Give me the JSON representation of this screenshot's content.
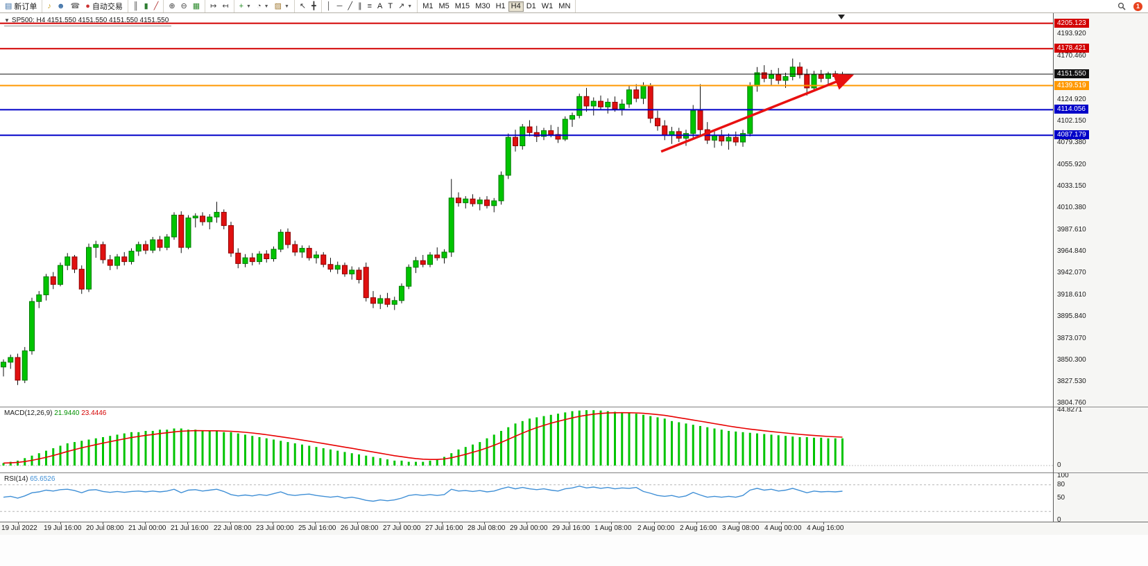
{
  "chart": {
    "collapse_arrow": "▼",
    "symbol_period": "SP500: H4",
    "ohlc": "4151.550 4151.550 4151.550 4151.550"
  },
  "toolbar": {
    "groups": [
      {
        "items": [
          {
            "icon": "new-order-icon",
            "label": "新订单",
            "name": "new-order-button"
          }
        ]
      },
      {
        "items": [
          {
            "icon": "sound-icon",
            "name": "sound-button"
          },
          {
            "icon": "community-icon",
            "name": "community-button"
          },
          {
            "icon": "support-icon",
            "name": "support-button"
          },
          {
            "icon": "autotrade-icon",
            "label": "自动交易",
            "name": "autotrading-button"
          }
        ]
      },
      {
        "items": [
          {
            "icon": "bar-chart-icon",
            "name": "bar-chart-button"
          },
          {
            "icon": "candlestick-icon",
            "name": "candlestick-button"
          },
          {
            "icon": "line-chart-icon",
            "name": "line-chart-button"
          }
        ]
      },
      {
        "items": [
          {
            "icon": "zoom-in-icon",
            "name": "zoom-in-button"
          },
          {
            "icon": "zoom-out-icon",
            "name": "zoom-out-button"
          },
          {
            "icon": "tile-windows-icon",
            "name": "tile-windows-button"
          }
        ]
      },
      {
        "items": [
          {
            "icon": "auto-scroll-icon",
            "name": "auto-scroll-button"
          },
          {
            "icon": "chart-shift-icon",
            "name": "chart-shift-button"
          }
        ]
      },
      {
        "items": [
          {
            "icon": "indicators-icon",
            "caret": true,
            "name": "indicators-button"
          },
          {
            "icon": "period-icon",
            "caret": true,
            "name": "periods-button"
          },
          {
            "icon": "template-icon",
            "caret": true,
            "name": "templates-button"
          }
        ]
      },
      {
        "items": [
          {
            "icon": "cursor-icon",
            "name": "cursor-button"
          },
          {
            "icon": "crosshair-icon",
            "name": "crosshair-button"
          }
        ]
      },
      {
        "items": [
          {
            "icon": "vline-icon",
            "name": "vline-button"
          },
          {
            "icon": "hline-icon",
            "name": "hline-button"
          },
          {
            "icon": "trendline-icon",
            "name": "trendline-button"
          },
          {
            "icon": "channel-icon",
            "name": "channel-button"
          },
          {
            "icon": "fibo-icon",
            "name": "fibo-button"
          },
          {
            "icon": "text-icon",
            "label": "A",
            "name": "text-button"
          },
          {
            "icon": "label-icon",
            "label": "T",
            "name": "label-button"
          },
          {
            "icon": "arrows-icon",
            "caret": true,
            "name": "arrows-button"
          }
        ]
      },
      {
        "items": [
          {
            "label": "M1",
            "name": "tf-m1"
          },
          {
            "label": "M5",
            "name": "tf-m5"
          },
          {
            "label": "M15",
            "name": "tf-m15"
          },
          {
            "label": "M30",
            "name": "tf-m30"
          },
          {
            "label": "H1",
            "name": "tf-h1"
          },
          {
            "label": "H4",
            "name": "tf-h4",
            "active": true
          },
          {
            "label": "D1",
            "name": "tf-d1"
          },
          {
            "label": "W1",
            "name": "tf-w1"
          },
          {
            "label": "MN",
            "name": "tf-mn"
          }
        ]
      }
    ],
    "right": [
      {
        "icon": "search-icon",
        "name": "search-button"
      },
      {
        "icon": "notification-badge",
        "label": "1",
        "name": "notification-badge"
      }
    ]
  },
  "chart_data": [
    {
      "type": "candlestick",
      "symbol": "SP500",
      "period": "H4",
      "ylim": [
        3800,
        4212
      ],
      "y_ticks": [
        "4193.920",
        "4170.460",
        "4124.920",
        "4102.150",
        "4079.380",
        "4055.920",
        "4033.150",
        "4010.380",
        "3987.610",
        "3964.840",
        "3942.070",
        "3918.610",
        "3895.840",
        "3873.070",
        "3850.300",
        "3827.530",
        "3804.760"
      ],
      "x_labels": [
        "19 Jul 2022",
        "19 Jul 16:00",
        "20 Jul 08:00",
        "21 Jul 00:00",
        "21 Jul 16:00",
        "22 Jul 08:00",
        "23 Jul 00:00",
        "25 Jul 16:00",
        "26 Jul 08:00",
        "27 Jul 00:00",
        "27 Jul 16:00",
        "28 Jul 08:00",
        "29 Jul 00:00",
        "29 Jul 16:00",
        "1 Aug 08:00",
        "2 Aug 00:00",
        "2 Aug 16:00",
        "3 Aug 08:00",
        "4 Aug 00:00",
        "4 Aug 16:00"
      ],
      "levels": [
        {
          "price": 4205.123,
          "label": "4205.123",
          "color": "#d20000",
          "width": 2
        },
        {
          "price": 4178.421,
          "label": "4178.421",
          "color": "#d20000",
          "width": 2
        },
        {
          "price": 4139.519,
          "label": "4139.519",
          "color": "#ff9800",
          "width": 2
        },
        {
          "price": 4114.056,
          "label": "4114.056",
          "color": "#0000c8",
          "width": 2
        },
        {
          "price": 4087.179,
          "label": "4087.179",
          "color": "#0000c8",
          "width": 2
        }
      ],
      "current_price": {
        "price": 4151.55,
        "label": "4151.550",
        "color": "#101010"
      },
      "trend_arrow": {
        "from_bar": 92.5,
        "from_price": 4070,
        "to_bar": 119.3,
        "to_price": 4150,
        "color": "#e81010"
      },
      "candles": [
        [
          3843,
          3851,
          3833,
          3848
        ],
        [
          3848,
          3856,
          3841,
          3853
        ],
        [
          3853,
          3857,
          3824,
          3829
        ],
        [
          3829,
          3864,
          3826,
          3860
        ],
        [
          3860,
          3916,
          3856,
          3912
        ],
        [
          3912,
          3923,
          3905,
          3919
        ],
        [
          3919,
          3941,
          3913,
          3938
        ],
        [
          3938,
          3943,
          3925,
          3930
        ],
        [
          3930,
          3953,
          3928,
          3950
        ],
        [
          3950,
          3963,
          3945,
          3959
        ],
        [
          3959,
          3961,
          3942,
          3946
        ],
        [
          3946,
          3950,
          3920,
          3925
        ],
        [
          3925,
          3973,
          3922,
          3969
        ],
        [
          3969,
          3976,
          3958,
          3972
        ],
        [
          3972,
          3975,
          3952,
          3956
        ],
        [
          3956,
          3961,
          3945,
          3950
        ],
        [
          3950,
          3962,
          3946,
          3959
        ],
        [
          3959,
          3964,
          3950,
          3954
        ],
        [
          3954,
          3968,
          3951,
          3965
        ],
        [
          3965,
          3975,
          3960,
          3972
        ],
        [
          3972,
          3976,
          3962,
          3966
        ],
        [
          3966,
          3980,
          3963,
          3977
        ],
        [
          3977,
          3981,
          3965,
          3969
        ],
        [
          3969,
          3983,
          3966,
          3980
        ],
        [
          3980,
          4006,
          3977,
          4003
        ],
        [
          4003,
          4007,
          3963,
          3969
        ],
        [
          3969,
          4003,
          3967,
          4000
        ],
        [
          4000,
          4005,
          3990,
          4002
        ],
        [
          4002,
          4006,
          3992,
          3996
        ],
        [
          3996,
          4004,
          3988,
          4001
        ],
        [
          4001,
          4017,
          3995,
          4006
        ],
        [
          4006,
          4009,
          3988,
          3992
        ],
        [
          3992,
          3996,
          3959,
          3963
        ],
        [
          3963,
          3968,
          3947,
          3952
        ],
        [
          3952,
          3962,
          3948,
          3958
        ],
        [
          3958,
          3963,
          3950,
          3954
        ],
        [
          3954,
          3965,
          3951,
          3962
        ],
        [
          3962,
          3966,
          3953,
          3957
        ],
        [
          3957,
          3970,
          3954,
          3967
        ],
        [
          3967,
          3988,
          3964,
          3985
        ],
        [
          3985,
          3989,
          3968,
          3972
        ],
        [
          3972,
          3976,
          3960,
          3964
        ],
        [
          3964,
          3971,
          3958,
          3968
        ],
        [
          3968,
          3971,
          3955,
          3958
        ],
        [
          3958,
          3965,
          3952,
          3961
        ],
        [
          3961,
          3964,
          3948,
          3951
        ],
        [
          3951,
          3958,
          3943,
          3946
        ],
        [
          3946,
          3954,
          3941,
          3950
        ],
        [
          3950,
          3953,
          3938,
          3941
        ],
        [
          3941,
          3949,
          3935,
          3945
        ],
        [
          3945,
          3948,
          3931,
          3935
        ],
        [
          3948,
          3953,
          3912,
          3916
        ],
        [
          3916,
          3923,
          3905,
          3910
        ],
        [
          3910,
          3919,
          3904,
          3915
        ],
        [
          3915,
          3921,
          3906,
          3909
        ],
        [
          3909,
          3917,
          3903,
          3913
        ],
        [
          3913,
          3931,
          3910,
          3928
        ],
        [
          3928,
          3951,
          3925,
          3948
        ],
        [
          3948,
          3959,
          3942,
          3955
        ],
        [
          3955,
          3961,
          3948,
          3951
        ],
        [
          3951,
          3964,
          3948,
          3961
        ],
        [
          3961,
          3969,
          3955,
          3958
        ],
        [
          3958,
          3967,
          3952,
          3964
        ],
        [
          3964,
          4041,
          3959,
          4021
        ],
        [
          4021,
          4027,
          4012,
          4016
        ],
        [
          4016,
          4023,
          4010,
          4020
        ],
        [
          4020,
          4025,
          4012,
          4015
        ],
        [
          4015,
          4022,
          4008,
          4019
        ],
        [
          4019,
          4023,
          4010,
          4013
        ],
        [
          4013,
          4021,
          4006,
          4018
        ],
        [
          4018,
          4049,
          4014,
          4045
        ],
        [
          4045,
          4089,
          4041,
          4085
        ],
        [
          4085,
          4093,
          4070,
          4076
        ],
        [
          4076,
          4099,
          4072,
          4096
        ],
        [
          4096,
          4103,
          4086,
          4090
        ],
        [
          4090,
          4097,
          4080,
          4086
        ],
        [
          4086,
          4095,
          4082,
          4092
        ],
        [
          4092,
          4098,
          4085,
          4088
        ],
        [
          4088,
          4096,
          4079,
          4083
        ],
        [
          4083,
          4107,
          4081,
          4104
        ],
        [
          4104,
          4111,
          4096,
          4108
        ],
        [
          4108,
          4131,
          4105,
          4128
        ],
        [
          4128,
          4137,
          4112,
          4118
        ],
        [
          4118,
          4127,
          4108,
          4123
        ],
        [
          4123,
          4129,
          4114,
          4117
        ],
        [
          4117,
          4126,
          4110,
          4122
        ],
        [
          4122,
          4128,
          4112,
          4115
        ],
        [
          4115,
          4125,
          4108,
          4120
        ],
        [
          4120,
          4139,
          4116,
          4135
        ],
        [
          4135,
          4141,
          4122,
          4126
        ],
        [
          4126,
          4143,
          4120,
          4139
        ],
        [
          4139,
          4142,
          4100,
          4105
        ],
        [
          4105,
          4113,
          4092,
          4097
        ],
        [
          4097,
          4103,
          4082,
          4087
        ],
        [
          4087,
          4096,
          4078,
          4091
        ],
        [
          4091,
          4095,
          4080,
          4084
        ],
        [
          4084,
          4093,
          4076,
          4089
        ],
        [
          4089,
          4119,
          4083,
          4113
        ],
        [
          4113,
          4141,
          4087,
          4093
        ],
        [
          4093,
          4101,
          4078,
          4082
        ],
        [
          4082,
          4091,
          4074,
          4087
        ],
        [
          4087,
          4093,
          4076,
          4081
        ],
        [
          4081,
          4089,
          4072,
          4085
        ],
        [
          4085,
          4091,
          4076,
          4080
        ],
        [
          4080,
          4093,
          4075,
          4089
        ],
        [
          4089,
          4143,
          4086,
          4139
        ],
        [
          4139,
          4159,
          4133,
          4153
        ],
        [
          4153,
          4161,
          4143,
          4147
        ],
        [
          4147,
          4156,
          4139,
          4151
        ],
        [
          4151,
          4158,
          4141,
          4145
        ],
        [
          4145,
          4153,
          4137,
          4149
        ],
        [
          4149,
          4168,
          4145,
          4159
        ],
        [
          4159,
          4164,
          4147,
          4151
        ],
        [
          4151,
          4157,
          4129,
          4137
        ],
        [
          4137,
          4155,
          4133,
          4151
        ],
        [
          4151,
          4156,
          4143,
          4147
        ],
        [
          4147,
          4154,
          4141,
          4152
        ],
        [
          4152,
          4155,
          4145,
          4149
        ],
        [
          4149,
          4154,
          4144,
          4151.55
        ]
      ]
    },
    {
      "type": "bar",
      "name": "MACD(12,26,9)",
      "main_value": "21.9440",
      "signal_value": "23.4446",
      "histogram_color": "#00c400",
      "signal_color": "#e80000",
      "ymax": 44.8271,
      "y_ticks": [
        "44.8271",
        "0"
      ],
      "values": [
        2,
        3,
        4,
        6,
        8,
        10,
        12,
        14,
        16,
        18,
        19,
        20,
        21,
        22,
        23,
        24,
        25,
        26,
        27,
        27,
        28,
        28,
        29,
        29,
        30,
        30,
        29,
        29,
        28,
        28,
        28,
        27,
        27,
        26,
        25,
        24,
        23,
        22,
        21,
        20,
        19,
        18,
        17,
        16,
        15,
        14,
        13,
        12,
        11,
        10,
        9,
        8,
        7,
        6,
        5,
        4,
        4,
        3,
        3,
        3,
        4,
        5,
        7,
        10,
        13,
        15,
        17,
        19,
        22,
        25,
        28,
        31,
        34,
        36,
        38,
        39,
        40,
        41,
        42,
        43,
        44,
        44.5,
        44.8,
        44.8,
        44.5,
        44,
        43.5,
        43,
        42.5,
        42,
        41,
        40,
        39,
        38,
        36,
        35,
        34,
        33,
        32,
        31,
        30,
        29,
        28,
        27.5,
        27,
        26.5,
        26,
        25.5,
        25,
        24.5,
        24,
        23.5,
        23,
        23,
        22.5,
        22.5,
        22,
        22,
        21.94
      ]
    },
    {
      "type": "line",
      "name": "RSI(14)",
      "value": "65.6526",
      "line_color": "#3f8fd6",
      "range": [
        0,
        100
      ],
      "levels_dashed": [
        80,
        20
      ],
      "y_ticks": [
        "100",
        "80",
        "50",
        "0"
      ],
      "values": [
        52,
        54,
        50,
        55,
        62,
        64,
        68,
        66,
        69,
        70,
        67,
        62,
        68,
        69,
        65,
        63,
        65,
        63,
        65,
        66,
        64,
        66,
        64,
        66,
        70,
        62,
        68,
        69,
        66,
        68,
        70,
        65,
        58,
        55,
        57,
        55,
        58,
        56,
        60,
        64,
        58,
        56,
        58,
        59,
        56,
        54,
        52,
        54,
        50,
        52,
        49,
        45,
        43,
        46,
        44,
        46,
        50,
        56,
        58,
        56,
        58,
        56,
        58,
        70,
        66,
        67,
        65,
        67,
        64,
        66,
        71,
        75,
        71,
        74,
        71,
        69,
        71,
        68,
        66,
        71,
        73,
        77,
        73,
        75,
        72,
        74,
        71,
        73,
        72,
        74,
        65,
        61,
        56,
        54,
        56,
        52,
        55,
        63,
        57,
        52,
        54,
        52,
        54,
        52,
        56,
        68,
        72,
        68,
        70,
        66,
        68,
        72,
        67,
        62,
        66,
        64,
        65,
        64,
        65.65
      ]
    }
  ]
}
